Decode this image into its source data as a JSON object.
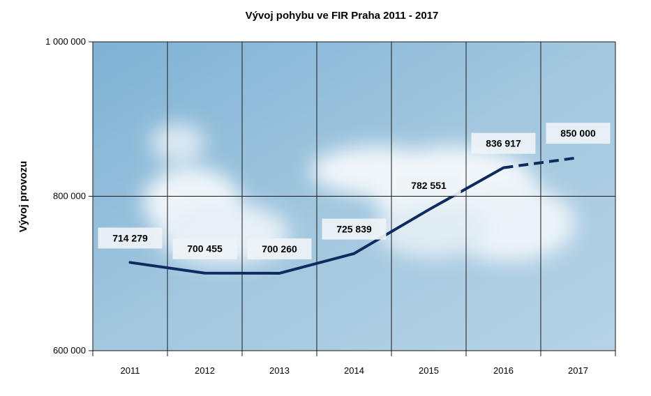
{
  "chart_data": {
    "type": "line",
    "title": "Vývoj pohybu ve FIR Praha  2011 - 2017",
    "ylabel": "Vývoj provozu",
    "xlabel": "",
    "ylim": [
      600000,
      1000000
    ],
    "yticks": [
      {
        "value": 600000,
        "label": "600 000"
      },
      {
        "value": 800000,
        "label": "800 000"
      },
      {
        "value": 1000000,
        "label": "1 000 000"
      }
    ],
    "categories": [
      "2011",
      "2012",
      "2013",
      "2014",
      "2015",
      "2016",
      "2017"
    ],
    "values": [
      714279,
      700455,
      700260,
      725839,
      782551,
      836917,
      850000
    ],
    "data_labels": [
      "714 279",
      "700 455",
      "700 260",
      "725 839",
      "782 551",
      "836 917",
      "850 000"
    ],
    "forecast_from_index": 5,
    "grid": true,
    "colors": {
      "line": "#0e2a5e",
      "grid": "#1a1a1a",
      "label_bg": "#eef3f6"
    }
  }
}
